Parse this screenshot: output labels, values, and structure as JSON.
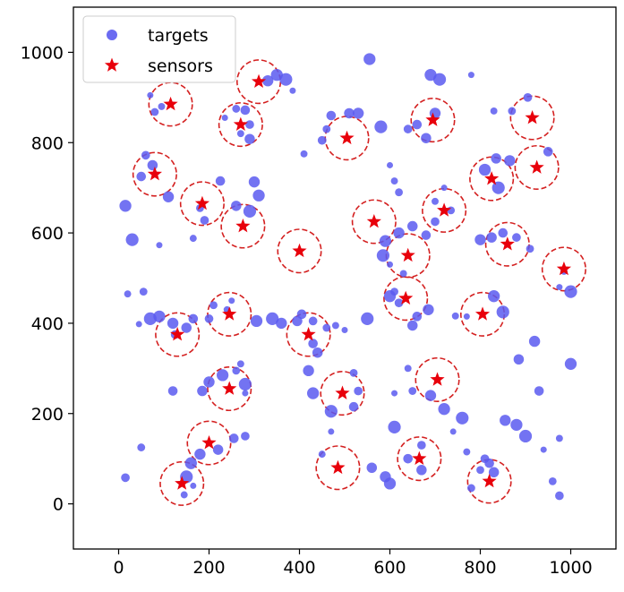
{
  "chart_data": {
    "type": "scatter",
    "xlim": [
      -100,
      1100
    ],
    "ylim": [
      -100,
      1100
    ],
    "xticks": [
      0,
      200,
      400,
      600,
      800,
      1000
    ],
    "yticks": [
      0,
      200,
      400,
      600,
      800,
      1000
    ],
    "grid": false,
    "legend_placement": "top-left",
    "sensing_radius": 48,
    "colors": {
      "targets": "#5b5bf0",
      "sensors": "#e8000b",
      "range_circle": "#d42020"
    },
    "series": [
      {
        "name": "targets",
        "marker": "circle",
        "points": [
          [
            70,
            905
          ],
          [
            95,
            880
          ],
          [
            80,
            868
          ],
          [
            60,
            772
          ],
          [
            50,
            725
          ],
          [
            75,
            750
          ],
          [
            110,
            680
          ],
          [
            15,
            660
          ],
          [
            30,
            585
          ],
          [
            90,
            573
          ],
          [
            165,
            588
          ],
          [
            180,
            655
          ],
          [
            190,
            628
          ],
          [
            225,
            715
          ],
          [
            260,
            660
          ],
          [
            300,
            713
          ],
          [
            310,
            683
          ],
          [
            290,
            648
          ],
          [
            235,
            855
          ],
          [
            270,
            820
          ],
          [
            260,
            875
          ],
          [
            290,
            840
          ],
          [
            280,
            872
          ],
          [
            290,
            808
          ],
          [
            330,
            937
          ],
          [
            350,
            950
          ],
          [
            370,
            940
          ],
          [
            385,
            915
          ],
          [
            410,
            775
          ],
          [
            460,
            830
          ],
          [
            450,
            805
          ],
          [
            470,
            860
          ],
          [
            510,
            865
          ],
          [
            530,
            865
          ],
          [
            555,
            985
          ],
          [
            580,
            835
          ],
          [
            600,
            750
          ],
          [
            610,
            715
          ],
          [
            620,
            690
          ],
          [
            640,
            830
          ],
          [
            660,
            840
          ],
          [
            680,
            810
          ],
          [
            700,
            865
          ],
          [
            690,
            950
          ],
          [
            710,
            940
          ],
          [
            780,
            950
          ],
          [
            830,
            870
          ],
          [
            870,
            870
          ],
          [
            905,
            900
          ],
          [
            950,
            780
          ],
          [
            835,
            765
          ],
          [
            865,
            760
          ],
          [
            810,
            740
          ],
          [
            840,
            700
          ],
          [
            720,
            700
          ],
          [
            700,
            670
          ],
          [
            735,
            650
          ],
          [
            700,
            625
          ],
          [
            680,
            595
          ],
          [
            650,
            615
          ],
          [
            620,
            600
          ],
          [
            590,
            582
          ],
          [
            585,
            550
          ],
          [
            600,
            530
          ],
          [
            630,
            510
          ],
          [
            610,
            470
          ],
          [
            620,
            445
          ],
          [
            660,
            415
          ],
          [
            650,
            395
          ],
          [
            685,
            430
          ],
          [
            600,
            460
          ],
          [
            550,
            410
          ],
          [
            500,
            385
          ],
          [
            480,
            395
          ],
          [
            460,
            390
          ],
          [
            430,
            405
          ],
          [
            405,
            420
          ],
          [
            395,
            405
          ],
          [
            360,
            400
          ],
          [
            305,
            405
          ],
          [
            340,
            410
          ],
          [
            250,
            450
          ],
          [
            240,
            430
          ],
          [
            210,
            440
          ],
          [
            200,
            410
          ],
          [
            165,
            410
          ],
          [
            150,
            390
          ],
          [
            120,
            400
          ],
          [
            90,
            415
          ],
          [
            70,
            410
          ],
          [
            45,
            398
          ],
          [
            20,
            465
          ],
          [
            55,
            470
          ],
          [
            125,
            375
          ],
          [
            120,
            250
          ],
          [
            185,
            250
          ],
          [
            200,
            270
          ],
          [
            230,
            285
          ],
          [
            280,
            265
          ],
          [
            280,
            245
          ],
          [
            270,
            310
          ],
          [
            260,
            295
          ],
          [
            280,
            150
          ],
          [
            255,
            145
          ],
          [
            220,
            120
          ],
          [
            180,
            110
          ],
          [
            160,
            90
          ],
          [
            150,
            60
          ],
          [
            165,
            40
          ],
          [
            145,
            20
          ],
          [
            50,
            125
          ],
          [
            15,
            58
          ],
          [
            430,
            355
          ],
          [
            440,
            335
          ],
          [
            420,
            295
          ],
          [
            430,
            245
          ],
          [
            470,
            205
          ],
          [
            470,
            160
          ],
          [
            450,
            110
          ],
          [
            520,
            290
          ],
          [
            530,
            250
          ],
          [
            520,
            215
          ],
          [
            560,
            80
          ],
          [
            590,
            60
          ],
          [
            600,
            45
          ],
          [
            610,
            170
          ],
          [
            610,
            245
          ],
          [
            640,
            300
          ],
          [
            650,
            250
          ],
          [
            670,
            130
          ],
          [
            640,
            100
          ],
          [
            670,
            75
          ],
          [
            690,
            240
          ],
          [
            720,
            210
          ],
          [
            760,
            190
          ],
          [
            740,
            160
          ],
          [
            770,
            115
          ],
          [
            800,
            75
          ],
          [
            810,
            100
          ],
          [
            820,
            90
          ],
          [
            830,
            70
          ],
          [
            855,
            185
          ],
          [
            880,
            175
          ],
          [
            900,
            150
          ],
          [
            940,
            120
          ],
          [
            975,
            145
          ],
          [
            960,
            50
          ],
          [
            975,
            18
          ],
          [
            930,
            250
          ],
          [
            885,
            320
          ],
          [
            920,
            360
          ],
          [
            1000,
            310
          ],
          [
            1000,
            470
          ],
          [
            975,
            480
          ],
          [
            985,
            515
          ],
          [
            910,
            565
          ],
          [
            880,
            590
          ],
          [
            850,
            600
          ],
          [
            825,
            590
          ],
          [
            800,
            585
          ],
          [
            830,
            460
          ],
          [
            850,
            425
          ],
          [
            770,
            415
          ],
          [
            745,
            416
          ],
          [
            780,
            35
          ]
        ]
      },
      {
        "name": "sensors",
        "marker": "star",
        "points": [
          [
            115,
            885
          ],
          [
            310,
            935
          ],
          [
            270,
            840
          ],
          [
            505,
            810
          ],
          [
            695,
            850
          ],
          [
            915,
            855
          ],
          [
            80,
            730
          ],
          [
            185,
            665
          ],
          [
            275,
            615
          ],
          [
            400,
            560
          ],
          [
            565,
            625
          ],
          [
            720,
            650
          ],
          [
            825,
            720
          ],
          [
            925,
            745
          ],
          [
            640,
            550
          ],
          [
            860,
            575
          ],
          [
            985,
            520
          ],
          [
            635,
            455
          ],
          [
            245,
            420
          ],
          [
            130,
            375
          ],
          [
            420,
            375
          ],
          [
            805,
            420
          ],
          [
            245,
            255
          ],
          [
            495,
            245
          ],
          [
            705,
            275
          ],
          [
            200,
            135
          ],
          [
            140,
            45
          ],
          [
            485,
            80
          ],
          [
            665,
            100
          ],
          [
            820,
            50
          ]
        ]
      }
    ]
  }
}
